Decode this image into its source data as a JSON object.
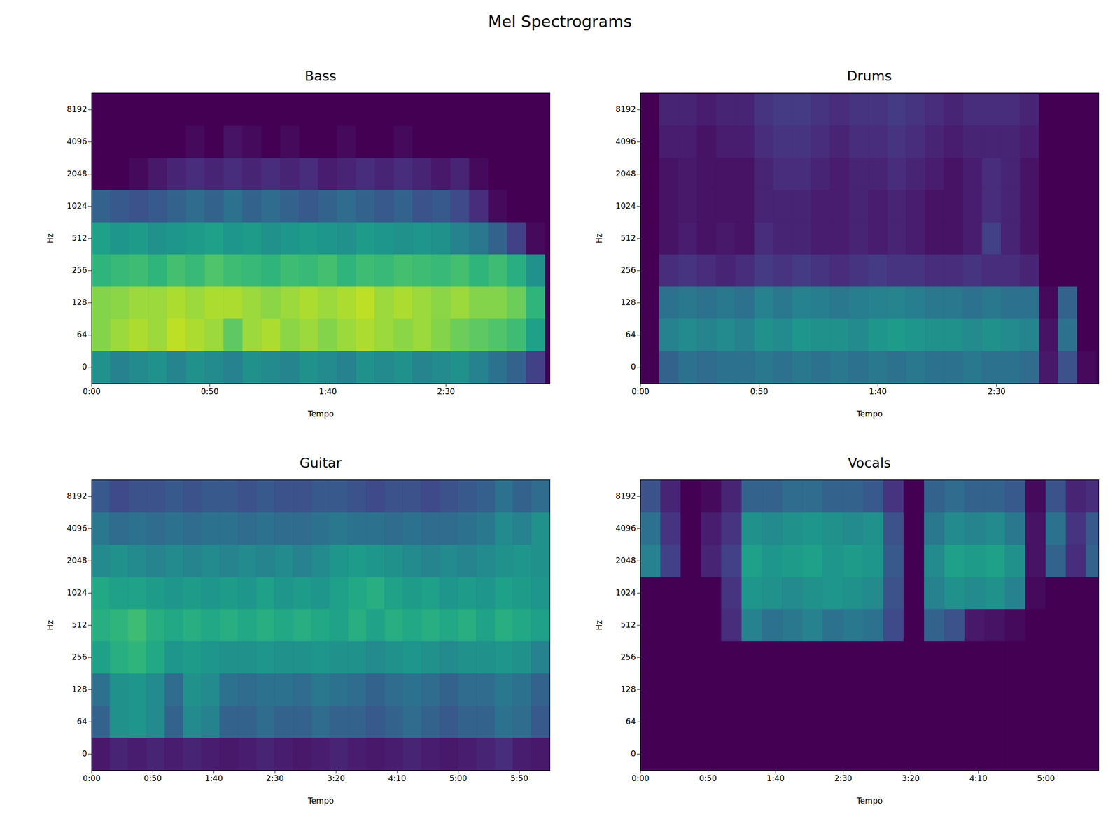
{
  "title": "Mel Spectrograms",
  "chart_data": [
    {
      "type": "heatmap",
      "title": "Bass",
      "xlabel": "Tempo",
      "ylabel": "Hz",
      "xlim": [
        0,
        194
      ],
      "xticks": [
        {
          "value": 0,
          "label": "0:00"
        },
        {
          "value": 50,
          "label": "0:50"
        },
        {
          "value": 100,
          "label": "1:40"
        },
        {
          "value": 150,
          "label": "2:30"
        }
      ],
      "yticks": [
        0,
        64,
        128,
        256,
        512,
        1024,
        2048,
        4096,
        8192
      ],
      "x_bins": [
        0,
        8,
        16,
        24,
        32,
        40,
        48,
        56,
        64,
        72,
        80,
        88,
        96,
        104,
        112,
        120,
        128,
        136,
        144,
        152,
        160,
        168,
        176,
        184,
        192
      ],
      "clim": [
        -80,
        0
      ],
      "z": [
        [
          -40,
          -45,
          -42,
          -40,
          -44,
          -40,
          -42,
          -45,
          -40,
          -42,
          -44,
          -40,
          -42,
          -45,
          -40,
          -42,
          -40,
          -44,
          -42,
          -40,
          -45,
          -50,
          -55,
          -65
        ],
        [
          -15,
          -12,
          -10,
          -12,
          -8,
          -10,
          -12,
          -20,
          -12,
          -10,
          -14,
          -12,
          -15,
          -12,
          -10,
          -12,
          -14,
          -12,
          -15,
          -18,
          -20,
          -22,
          -25,
          -35
        ],
        [
          -15,
          -14,
          -12,
          -12,
          -10,
          -12,
          -10,
          -10,
          -12,
          -14,
          -12,
          -10,
          -12,
          -10,
          -8,
          -12,
          -10,
          -12,
          -14,
          -12,
          -15,
          -15,
          -18,
          -28
        ],
        [
          -28,
          -26,
          -25,
          -28,
          -24,
          -26,
          -22,
          -25,
          -26,
          -28,
          -25,
          -26,
          -24,
          -28,
          -25,
          -26,
          -24,
          -25,
          -26,
          -24,
          -28,
          -25,
          -30,
          -40
        ],
        [
          -35,
          -38,
          -36,
          -40,
          -38,
          -36,
          -35,
          -38,
          -36,
          -40,
          -38,
          -36,
          -38,
          -40,
          -36,
          -38,
          -40,
          -38,
          -40,
          -45,
          -48,
          -55,
          -65,
          -78
        ],
        [
          -55,
          -58,
          -60,
          -58,
          -55,
          -52,
          -55,
          -50,
          -55,
          -52,
          -55,
          -58,
          -55,
          -52,
          -55,
          -58,
          -55,
          -60,
          -58,
          -62,
          -70,
          -78,
          -80,
          -80
        ],
        [
          -80,
          -80,
          -78,
          -75,
          -72,
          -70,
          -72,
          -70,
          -72,
          -70,
          -72,
          -70,
          -74,
          -72,
          -70,
          -72,
          -70,
          -72,
          -75,
          -72,
          -78,
          -80,
          -80,
          -80
        ],
        [
          -80,
          -80,
          -80,
          -80,
          -80,
          -78,
          -80,
          -76,
          -78,
          -80,
          -78,
          -80,
          -80,
          -78,
          -80,
          -80,
          -78,
          -80,
          -80,
          -80,
          -80,
          -80,
          -80,
          -80
        ],
        [
          -80,
          -80,
          -80,
          -80,
          -80,
          -80,
          -80,
          -80,
          -80,
          -80,
          -80,
          -80,
          -80,
          -80,
          -80,
          -80,
          -80,
          -80,
          -80,
          -80,
          -80,
          -80,
          -80,
          -80
        ]
      ]
    },
    {
      "type": "heatmap",
      "title": "Drums",
      "xlabel": "Tempo",
      "ylabel": "Hz",
      "xlim": [
        0,
        193
      ],
      "xticks": [
        {
          "value": 0,
          "label": "0:00"
        },
        {
          "value": 50,
          "label": "0:50"
        },
        {
          "value": 100,
          "label": "1:40"
        },
        {
          "value": 150,
          "label": "2:30"
        }
      ],
      "yticks": [
        0,
        64,
        128,
        256,
        512,
        1024,
        2048,
        4096,
        8192
      ],
      "x_bins": [
        0,
        8,
        16,
        24,
        32,
        40,
        48,
        56,
        64,
        72,
        80,
        88,
        96,
        104,
        112,
        120,
        128,
        136,
        144,
        152,
        160,
        168,
        176,
        184,
        192
      ],
      "clim": [
        -80,
        0
      ],
      "z": [
        [
          -80,
          -55,
          -50,
          -52,
          -50,
          -50,
          -48,
          -50,
          -48,
          -50,
          -48,
          -50,
          -48,
          -50,
          -48,
          -50,
          -50,
          -48,
          -50,
          -50,
          -52,
          -75,
          -60,
          -78
        ],
        [
          -80,
          -45,
          -42,
          -44,
          -42,
          -45,
          -40,
          -42,
          -38,
          -40,
          -40,
          -42,
          -38,
          -36,
          -38,
          -40,
          -40,
          -42,
          -40,
          -42,
          -44,
          -76,
          -50,
          -80
        ],
        [
          -80,
          -50,
          -48,
          -50,
          -48,
          -50,
          -45,
          -48,
          -45,
          -46,
          -48,
          -46,
          -45,
          -44,
          -46,
          -48,
          -48,
          -50,
          -48,
          -50,
          -50,
          -78,
          -55,
          -80
        ],
        [
          -80,
          -70,
          -68,
          -70,
          -72,
          -70,
          -66,
          -68,
          -66,
          -68,
          -70,
          -68,
          -66,
          -68,
          -68,
          -70,
          -70,
          -68,
          -70,
          -70,
          -72,
          -80,
          -80,
          -80
        ],
        [
          -80,
          -76,
          -74,
          -76,
          -75,
          -76,
          -70,
          -72,
          -72,
          -74,
          -74,
          -72,
          -74,
          -72,
          -74,
          -76,
          -76,
          -74,
          -65,
          -72,
          -76,
          -80,
          -80,
          -80
        ],
        [
          -80,
          -76,
          -75,
          -76,
          -76,
          -76,
          -72,
          -72,
          -72,
          -74,
          -74,
          -72,
          -74,
          -72,
          -74,
          -76,
          -76,
          -74,
          -70,
          -72,
          -76,
          -80,
          -80,
          -80
        ],
        [
          -80,
          -76,
          -75,
          -76,
          -76,
          -76,
          -72,
          -70,
          -70,
          -72,
          -74,
          -72,
          -72,
          -70,
          -72,
          -74,
          -76,
          -74,
          -70,
          -72,
          -76,
          -80,
          -80,
          -80
        ],
        [
          -80,
          -74,
          -74,
          -76,
          -74,
          -74,
          -70,
          -68,
          -68,
          -70,
          -72,
          -70,
          -70,
          -68,
          -70,
          -72,
          -74,
          -72,
          -72,
          -72,
          -74,
          -80,
          -80,
          -80
        ],
        [
          -80,
          -72,
          -72,
          -74,
          -72,
          -72,
          -68,
          -66,
          -66,
          -68,
          -70,
          -68,
          -68,
          -66,
          -68,
          -70,
          -72,
          -70,
          -70,
          -70,
          -72,
          -80,
          -80,
          -80
        ]
      ]
    },
    {
      "type": "heatmap",
      "title": "Guitar",
      "xlabel": "Tempo",
      "ylabel": "Hz",
      "xlim": [
        0,
        375
      ],
      "xticks": [
        {
          "value": 0,
          "label": "0:00"
        },
        {
          "value": 50,
          "label": "0:50"
        },
        {
          "value": 100,
          "label": "1:40"
        },
        {
          "value": 150,
          "label": "2:30"
        },
        {
          "value": 200,
          "label": "3:20"
        },
        {
          "value": 250,
          "label": "4:10"
        },
        {
          "value": 300,
          "label": "5:00"
        },
        {
          "value": 350,
          "label": "5:50"
        }
      ],
      "yticks": [
        0,
        64,
        128,
        256,
        512,
        1024,
        2048,
        4096,
        8192
      ],
      "x_bins": [
        0,
        15,
        30,
        45,
        60,
        75,
        90,
        105,
        120,
        135,
        150,
        165,
        180,
        195,
        210,
        225,
        240,
        255,
        270,
        285,
        300,
        315,
        330,
        345,
        360,
        375
      ],
      "clim": [
        -80,
        0
      ],
      "z": [
        [
          -75,
          -72,
          -74,
          -72,
          -74,
          -72,
          -74,
          -75,
          -74,
          -72,
          -74,
          -75,
          -74,
          -72,
          -74,
          -75,
          -74,
          -72,
          -74,
          -75,
          -74,
          -72,
          -70,
          -74,
          -75
        ],
        [
          -55,
          -40,
          -38,
          -42,
          -55,
          -42,
          -45,
          -55,
          -55,
          -52,
          -55,
          -55,
          -52,
          -55,
          -55,
          -58,
          -55,
          -52,
          -55,
          -58,
          -55,
          -55,
          -50,
          -52,
          -58
        ],
        [
          -50,
          -40,
          -38,
          -42,
          -52,
          -40,
          -42,
          -50,
          -52,
          -50,
          -50,
          -52,
          -48,
          -50,
          -52,
          -55,
          -52,
          -50,
          -52,
          -55,
          -52,
          -52,
          -48,
          -50,
          -55
        ],
        [
          -35,
          -30,
          -28,
          -32,
          -38,
          -36,
          -38,
          -40,
          -40,
          -38,
          -40,
          -40,
          -38,
          -40,
          -40,
          -42,
          -40,
          -38,
          -40,
          -42,
          -40,
          -40,
          -38,
          -40,
          -45
        ],
        [
          -30,
          -28,
          -25,
          -30,
          -32,
          -30,
          -32,
          -30,
          -32,
          -30,
          -32,
          -30,
          -32,
          -34,
          -30,
          -34,
          -30,
          -32,
          -30,
          -32,
          -30,
          -34,
          -30,
          -32,
          -35
        ],
        [
          -32,
          -35,
          -34,
          -36,
          -38,
          -36,
          -38,
          -36,
          -38,
          -35,
          -38,
          -36,
          -38,
          -35,
          -32,
          -30,
          -34,
          -36,
          -35,
          -38,
          -36,
          -38,
          -35,
          -36,
          -38
        ],
        [
          -42,
          -40,
          -42,
          -44,
          -42,
          -44,
          -42,
          -44,
          -42,
          -44,
          -42,
          -45,
          -42,
          -38,
          -36,
          -38,
          -40,
          -42,
          -44,
          -42,
          -44,
          -42,
          -40,
          -38,
          -40
        ],
        [
          -48,
          -52,
          -50,
          -52,
          -50,
          -52,
          -50,
          -50,
          -52,
          -50,
          -52,
          -52,
          -50,
          -48,
          -50,
          -50,
          -52,
          -50,
          -52,
          -52,
          -50,
          -48,
          -42,
          -45,
          -40
        ],
        [
          -58,
          -62,
          -60,
          -60,
          -58,
          -60,
          -58,
          -58,
          -60,
          -58,
          -60,
          -60,
          -58,
          -58,
          -60,
          -62,
          -60,
          -60,
          -62,
          -60,
          -58,
          -56,
          -50,
          -55,
          -52
        ]
      ]
    },
    {
      "type": "heatmap",
      "title": "Vocals",
      "xlabel": "Tempo",
      "ylabel": "Hz",
      "xlim": [
        0,
        339
      ],
      "xticks": [
        {
          "value": 0,
          "label": "0:00"
        },
        {
          "value": 50,
          "label": "0:50"
        },
        {
          "value": 100,
          "label": "1:40"
        },
        {
          "value": 150,
          "label": "2:30"
        },
        {
          "value": 200,
          "label": "3:20"
        },
        {
          "value": 250,
          "label": "4:10"
        },
        {
          "value": 300,
          "label": "5:00"
        }
      ],
      "yticks": [
        0,
        64,
        128,
        256,
        512,
        1024,
        2048,
        4096,
        8192
      ],
      "x_bins": [
        0,
        15,
        30,
        45,
        60,
        75,
        90,
        105,
        120,
        135,
        150,
        165,
        180,
        195,
        210,
        225,
        240,
        255,
        270,
        285,
        300,
        315,
        330,
        339
      ],
      "clim": [
        -80,
        0
      ],
      "z": [
        [
          -80,
          -80,
          -80,
          -80,
          -80,
          -80,
          -80,
          -80,
          -80,
          -80,
          -80,
          -80,
          -80,
          -80,
          -80,
          -80,
          -80,
          -80,
          -80,
          -80,
          -80,
          -80,
          -80
        ],
        [
          -80,
          -80,
          -80,
          -80,
          -80,
          -80,
          -80,
          -80,
          -80,
          -80,
          -80,
          -80,
          -80,
          -80,
          -80,
          -80,
          -80,
          -80,
          -80,
          -80,
          -80,
          -80,
          -80
        ],
        [
          -80,
          -80,
          -80,
          -80,
          -80,
          -80,
          -80,
          -80,
          -80,
          -80,
          -80,
          -80,
          -80,
          -80,
          -80,
          -80,
          -80,
          -80,
          -80,
          -80,
          -80,
          -80,
          -80
        ],
        [
          -80,
          -80,
          -80,
          -80,
          -80,
          -80,
          -80,
          -80,
          -80,
          -80,
          -80,
          -80,
          -80,
          -80,
          -80,
          -80,
          -80,
          -80,
          -80,
          -80,
          -80,
          -80,
          -80
        ],
        [
          -80,
          -80,
          -80,
          -80,
          -70,
          -45,
          -50,
          -48,
          -45,
          -50,
          -48,
          -50,
          -62,
          -80,
          -55,
          -60,
          -75,
          -76,
          -78,
          -80,
          -80,
          -80,
          -80
        ],
        [
          -80,
          -80,
          -80,
          -80,
          -68,
          -38,
          -40,
          -42,
          -40,
          -38,
          -40,
          -42,
          -60,
          -80,
          -45,
          -40,
          -42,
          -40,
          -45,
          -78,
          -80,
          -80,
          -80
        ],
        [
          -45,
          -65,
          -80,
          -72,
          -65,
          -35,
          -38,
          -36,
          -35,
          -38,
          -36,
          -38,
          -58,
          -80,
          -42,
          -35,
          -36,
          -35,
          -40,
          -76,
          -55,
          -70,
          -55
        ],
        [
          -50,
          -68,
          -80,
          -74,
          -68,
          -40,
          -42,
          -40,
          -38,
          -40,
          -42,
          -40,
          -60,
          -80,
          -48,
          -42,
          -44,
          -42,
          -48,
          -76,
          -50,
          -68,
          -58
        ],
        [
          -60,
          -72,
          -80,
          -78,
          -72,
          -55,
          -55,
          -52,
          -52,
          -55,
          -55,
          -58,
          -68,
          -80,
          -55,
          -52,
          -55,
          -55,
          -58,
          -78,
          -60,
          -72,
          -70
        ]
      ]
    }
  ]
}
